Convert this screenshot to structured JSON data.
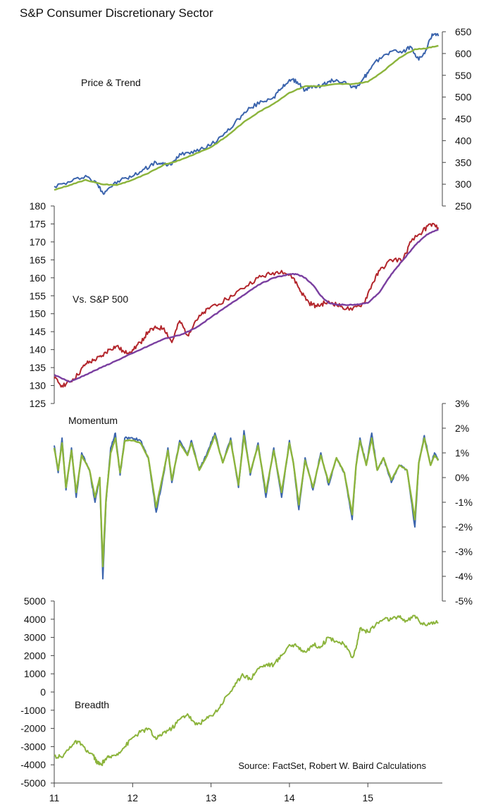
{
  "title": "S&P Consumer Discretionary Sector",
  "source": "Source: FactSet, Robert W. Baird Calculations",
  "x_axis": {
    "ticks": [
      "11",
      "12",
      "13",
      "14",
      "15"
    ],
    "range": [
      11,
      15.95
    ]
  },
  "colors": {
    "blue": "#3b64ad",
    "green": "#8cb43c",
    "red": "#b3262c",
    "purple": "#7a3fa0"
  },
  "chart_data": [
    {
      "type": "line",
      "label": "Price & Trend",
      "y_axis_side": "right",
      "ylim": [
        250,
        650
      ],
      "yticks": [
        "650",
        "600",
        "550",
        "500",
        "450",
        "400",
        "350",
        "300",
        "250"
      ],
      "series": [
        {
          "color": "#3b64ad",
          "x": [
            11.0,
            11.2,
            11.4,
            11.55,
            11.62,
            11.7,
            11.85,
            12.0,
            12.15,
            12.3,
            12.4,
            12.5,
            12.6,
            12.75,
            12.9,
            13.0,
            13.2,
            13.35,
            13.5,
            13.65,
            13.8,
            13.9,
            14.0,
            14.1,
            14.2,
            14.3,
            14.4,
            14.5,
            14.6,
            14.75,
            14.85,
            14.95,
            15.0,
            15.15,
            15.3,
            15.45,
            15.55,
            15.65,
            15.75,
            15.82,
            15.9
          ],
          "values": [
            295,
            305,
            320,
            300,
            280,
            292,
            310,
            318,
            335,
            350,
            345,
            345,
            370,
            375,
            382,
            390,
            420,
            450,
            475,
            490,
            500,
            520,
            540,
            535,
            515,
            525,
            525,
            535,
            540,
            530,
            520,
            545,
            555,
            590,
            605,
            605,
            615,
            585,
            610,
            645,
            640
          ]
        },
        {
          "color": "#8cb43c",
          "x": [
            11.0,
            11.2,
            11.4,
            11.6,
            11.8,
            12.0,
            12.2,
            12.4,
            12.6,
            12.8,
            13.0,
            13.2,
            13.4,
            13.6,
            13.8,
            14.0,
            14.2,
            14.4,
            14.6,
            14.8,
            15.0,
            15.2,
            15.4,
            15.6,
            15.75,
            15.9
          ],
          "values": [
            287,
            298,
            310,
            300,
            298,
            310,
            325,
            345,
            355,
            370,
            385,
            410,
            440,
            465,
            485,
            510,
            525,
            525,
            530,
            530,
            535,
            560,
            590,
            610,
            612,
            618
          ]
        }
      ]
    },
    {
      "type": "line",
      "label": "Vs. S&P 500",
      "y_axis_side": "left",
      "ylim": [
        125,
        180
      ],
      "yticks": [
        "180",
        "175",
        "170",
        "165",
        "160",
        "155",
        "150",
        "145",
        "140",
        "135",
        "130",
        "125"
      ],
      "series": [
        {
          "color": "#b3262c",
          "x": [
            11.0,
            11.1,
            11.2,
            11.3,
            11.4,
            11.5,
            11.6,
            11.7,
            11.8,
            11.9,
            12.0,
            12.1,
            12.2,
            12.3,
            12.4,
            12.5,
            12.6,
            12.7,
            12.8,
            12.9,
            13.0,
            13.2,
            13.4,
            13.6,
            13.75,
            13.9,
            14.05,
            14.15,
            14.25,
            14.35,
            14.45,
            14.55,
            14.65,
            14.8,
            14.95,
            15.05,
            15.15,
            15.3,
            15.45,
            15.55,
            15.7,
            15.8,
            15.9
          ],
          "values": [
            132,
            130,
            131,
            133,
            136,
            137,
            138,
            140,
            141,
            139,
            140,
            142,
            145,
            146,
            146,
            142,
            148,
            144,
            148,
            150,
            152,
            154,
            157,
            160,
            161,
            162,
            160,
            156,
            153,
            152,
            153,
            153,
            152,
            151,
            153,
            158,
            162,
            165,
            165,
            170,
            173,
            175,
            174
          ]
        },
        {
          "color": "#7a3fa0",
          "x": [
            11.0,
            11.2,
            11.4,
            11.6,
            11.8,
            12.0,
            12.2,
            12.4,
            12.6,
            12.8,
            13.0,
            13.2,
            13.4,
            13.6,
            13.8,
            14.0,
            14.1,
            14.2,
            14.3,
            14.4,
            14.5,
            14.6,
            14.7,
            14.85,
            15.0,
            15.15,
            15.3,
            15.45,
            15.6,
            15.75,
            15.9
          ],
          "values": [
            133,
            131,
            133,
            135,
            137,
            139,
            141,
            143,
            144,
            146,
            149,
            152,
            155,
            158,
            160,
            161,
            161,
            160,
            158,
            155,
            153,
            152.5,
            152.5,
            152.5,
            153,
            156,
            161,
            165,
            169,
            172,
            173.5
          ]
        }
      ]
    },
    {
      "type": "line",
      "label": "Momentum",
      "y_axis_side": "right",
      "ylim": [
        -5,
        3
      ],
      "yticks": [
        "3%",
        "2%",
        "1%",
        "0%",
        "-1%",
        "-2%",
        "-3%",
        "-4%",
        "-5%"
      ],
      "series": [
        {
          "color": "#3b64ad",
          "x": [
            11.0,
            11.05,
            11.1,
            11.15,
            11.22,
            11.28,
            11.35,
            11.45,
            11.52,
            11.58,
            11.62,
            11.66,
            11.72,
            11.78,
            11.84,
            11.9,
            12.0,
            12.1,
            12.2,
            12.3,
            12.4,
            12.45,
            12.5,
            12.6,
            12.7,
            12.75,
            12.85,
            12.95,
            13.05,
            13.15,
            13.25,
            13.35,
            13.42,
            13.5,
            13.6,
            13.7,
            13.8,
            13.9,
            14.0,
            14.05,
            14.12,
            14.2,
            14.3,
            14.4,
            14.5,
            14.6,
            14.7,
            14.8,
            14.85,
            14.9,
            14.98,
            15.05,
            15.12,
            15.2,
            15.3,
            15.4,
            15.5,
            15.6,
            15.65,
            15.72,
            15.8,
            15.85,
            15.9
          ],
          "values": [
            1.3,
            0.2,
            1.6,
            -0.5,
            1.2,
            -0.8,
            1.0,
            0.3,
            -1.0,
            0.0,
            -4.1,
            -1.0,
            1.2,
            1.8,
            0.1,
            1.6,
            1.6,
            1.5,
            0.8,
            -1.4,
            0.2,
            1.2,
            -0.2,
            1.5,
            0.9,
            1.5,
            0.3,
            1.0,
            1.8,
            0.6,
            1.6,
            -0.4,
            1.9,
            0.1,
            1.4,
            -0.8,
            1.2,
            -0.8,
            1.5,
            0.6,
            -1.3,
            0.8,
            -0.5,
            1.0,
            -0.3,
            0.8,
            0.2,
            -1.7,
            0.5,
            1.6,
            0.5,
            1.8,
            0.3,
            0.8,
            -0.2,
            0.5,
            0.3,
            -2.0,
            0.6,
            1.7,
            0.5,
            1.0,
            0.7
          ]
        },
        {
          "color": "#8cb43c",
          "x": [
            11.0,
            11.05,
            11.1,
            11.15,
            11.22,
            11.28,
            11.35,
            11.45,
            11.52,
            11.58,
            11.62,
            11.66,
            11.72,
            11.78,
            11.84,
            11.9,
            12.0,
            12.1,
            12.2,
            12.3,
            12.4,
            12.45,
            12.5,
            12.6,
            12.7,
            12.75,
            12.85,
            12.95,
            13.05,
            13.15,
            13.25,
            13.35,
            13.42,
            13.5,
            13.6,
            13.7,
            13.8,
            13.9,
            14.0,
            14.05,
            14.12,
            14.2,
            14.3,
            14.4,
            14.5,
            14.6,
            14.7,
            14.8,
            14.85,
            14.9,
            14.98,
            15.05,
            15.12,
            15.2,
            15.3,
            15.4,
            15.5,
            15.6,
            15.65,
            15.72,
            15.8,
            15.85,
            15.9
          ],
          "values": [
            1.2,
            0.3,
            1.4,
            -0.4,
            1.1,
            -0.6,
            0.9,
            0.3,
            -0.8,
            0.0,
            -3.6,
            -0.9,
            1.0,
            1.6,
            0.2,
            1.5,
            1.5,
            1.4,
            0.8,
            -1.2,
            0.3,
            1.1,
            -0.1,
            1.4,
            0.9,
            1.4,
            0.3,
            0.9,
            1.7,
            0.6,
            1.5,
            -0.3,
            1.7,
            0.2,
            1.3,
            -0.6,
            1.1,
            -0.6,
            1.4,
            0.6,
            -1.1,
            0.7,
            -0.4,
            0.9,
            -0.2,
            0.8,
            0.2,
            -1.5,
            0.5,
            1.5,
            0.5,
            1.6,
            0.3,
            0.8,
            -0.1,
            0.5,
            0.3,
            -1.7,
            0.6,
            1.6,
            0.5,
            0.9,
            0.7
          ]
        }
      ]
    },
    {
      "type": "line",
      "label": "Breadth",
      "y_axis_side": "left",
      "ylim": [
        -5000,
        5000
      ],
      "yticks": [
        "5000",
        "4000",
        "3000",
        "2000",
        "1000",
        "0",
        "-1000",
        "-2000",
        "-3000",
        "-4000",
        "-5000"
      ],
      "series": [
        {
          "color": "#8cb43c",
          "x": [
            11.0,
            11.1,
            11.2,
            11.3,
            11.4,
            11.5,
            11.55,
            11.6,
            11.65,
            11.7,
            11.8,
            11.9,
            12.0,
            12.1,
            12.2,
            12.3,
            12.4,
            12.5,
            12.6,
            12.7,
            12.8,
            12.9,
            13.0,
            13.1,
            13.2,
            13.3,
            13.4,
            13.5,
            13.6,
            13.7,
            13.8,
            13.9,
            14.0,
            14.1,
            14.2,
            14.3,
            14.4,
            14.5,
            14.6,
            14.7,
            14.8,
            14.85,
            14.9,
            15.0,
            15.1,
            15.2,
            15.3,
            15.4,
            15.5,
            15.6,
            15.7,
            15.8,
            15.9
          ],
          "values": [
            -3500,
            -3600,
            -3000,
            -2700,
            -3200,
            -3500,
            -3900,
            -4000,
            -3700,
            -3600,
            -3400,
            -3000,
            -2500,
            -2200,
            -2000,
            -2600,
            -2200,
            -2000,
            -1500,
            -1200,
            -1800,
            -1600,
            -1300,
            -900,
            -200,
            300,
            1000,
            700,
            1300,
            1500,
            1500,
            2000,
            2600,
            2500,
            2200,
            2600,
            2500,
            3000,
            2800,
            2600,
            1900,
            2400,
            3500,
            3300,
            3700,
            4000,
            4000,
            4100,
            3900,
            4200,
            3700,
            3800,
            3800
          ]
        }
      ]
    }
  ]
}
